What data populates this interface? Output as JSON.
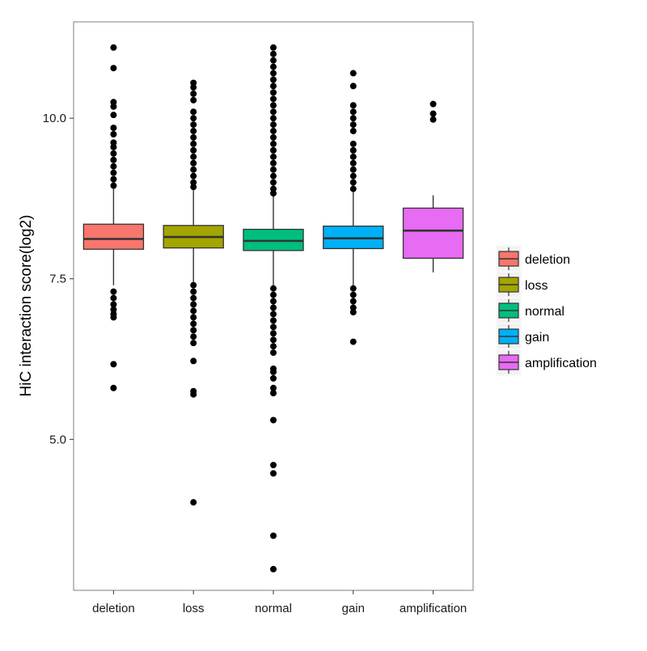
{
  "chart_data": {
    "type": "box",
    "title": "",
    "xlabel": "",
    "ylabel": "HiC interaction score(log2)",
    "ylim": [
      2.65,
      11.5
    ],
    "yticks": [
      5.0,
      7.5,
      10.0
    ],
    "ytick_labels": [
      "5.0",
      "7.5",
      "10.0"
    ],
    "grid": false,
    "legend_position": "right",
    "categories": [
      "deletion",
      "loss",
      "normal",
      "gain",
      "amplification"
    ],
    "series": [
      {
        "name": "deletion",
        "color": "#F8766D",
        "whisker_low": 7.4,
        "q1": 7.96,
        "median": 8.12,
        "q3": 8.35,
        "whisker_high": 8.9,
        "outliers": [
          11.1,
          10.78,
          10.25,
          10.18,
          10.05,
          9.85,
          9.75,
          9.62,
          9.55,
          9.45,
          9.35,
          9.25,
          9.15,
          9.05,
          8.95,
          7.3,
          7.2,
          7.1,
          7.02,
          6.95,
          6.9,
          6.17,
          5.8
        ]
      },
      {
        "name": "loss",
        "color": "#A3A500",
        "whisker_low": 7.45,
        "q1": 7.98,
        "median": 8.15,
        "q3": 8.33,
        "whisker_high": 8.88,
        "outliers": [
          10.55,
          10.48,
          10.38,
          10.28,
          10.1,
          10.0,
          9.9,
          9.8,
          9.7,
          9.6,
          9.5,
          9.4,
          9.3,
          9.2,
          9.1,
          9.0,
          8.93,
          7.4,
          7.3,
          7.2,
          7.1,
          7.0,
          6.9,
          6.8,
          6.7,
          6.6,
          6.5,
          6.22,
          5.75,
          5.7,
          4.02
        ]
      },
      {
        "name": "normal",
        "color": "#00BF7D",
        "whisker_low": 7.4,
        "q1": 7.94,
        "median": 8.09,
        "q3": 8.27,
        "whisker_high": 8.8,
        "outliers": [
          11.1,
          11.0,
          10.9,
          10.8,
          10.7,
          10.6,
          10.5,
          10.4,
          10.3,
          10.2,
          10.1,
          10.0,
          9.9,
          9.8,
          9.7,
          9.6,
          9.5,
          9.4,
          9.3,
          9.2,
          9.1,
          9.0,
          8.9,
          8.83,
          7.35,
          7.25,
          7.15,
          7.05,
          6.95,
          6.85,
          6.75,
          6.65,
          6.55,
          6.45,
          6.35,
          6.1,
          6.05,
          5.95,
          5.8,
          5.72,
          5.3,
          4.6,
          4.47,
          3.5,
          2.98
        ]
      },
      {
        "name": "gain",
        "color": "#00B0F6",
        "whisker_low": 7.4,
        "q1": 7.97,
        "median": 8.13,
        "q3": 8.32,
        "whisker_high": 8.85,
        "outliers": [
          10.7,
          10.5,
          10.2,
          10.1,
          10.0,
          9.9,
          9.8,
          9.6,
          9.5,
          9.4,
          9.3,
          9.2,
          9.1,
          9.0,
          8.9,
          7.35,
          7.25,
          7.15,
          7.05,
          6.98,
          6.52
        ]
      },
      {
        "name": "amplification",
        "color": "#E76BF3",
        "whisker_low": 7.6,
        "q1": 7.82,
        "median": 8.25,
        "q3": 8.6,
        "whisker_high": 8.8,
        "outliers": [
          10.22,
          10.07,
          9.98
        ]
      }
    ]
  }
}
